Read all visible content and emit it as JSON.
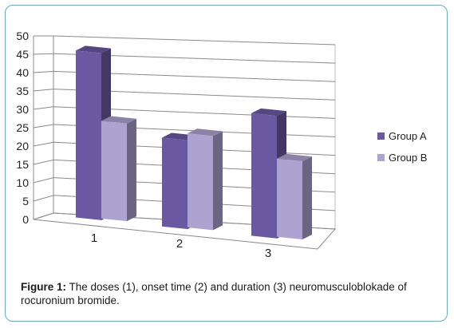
{
  "figure": {
    "caption_label": "Figure 1:",
    "caption_text": " The doses (1), onset time (2) and duration (3) neuromusculoblokade of rocuronium bromide."
  },
  "chart_data": {
    "type": "bar",
    "style": "3d-clustered-column",
    "categories": [
      "1",
      "2",
      "3"
    ],
    "series": [
      {
        "name": "Group A",
        "values": [
          47,
          25,
          34.5
        ],
        "color": "#6b58a3"
      },
      {
        "name": "Group B",
        "values": [
          27.5,
          26.5,
          22
        ],
        "color": "#ada3d1"
      }
    ],
    "ylim": [
      0,
      50
    ],
    "yticks": [
      0,
      5,
      10,
      15,
      20,
      25,
      30,
      35,
      40,
      45,
      50
    ],
    "grid": true,
    "legend": "right"
  }
}
